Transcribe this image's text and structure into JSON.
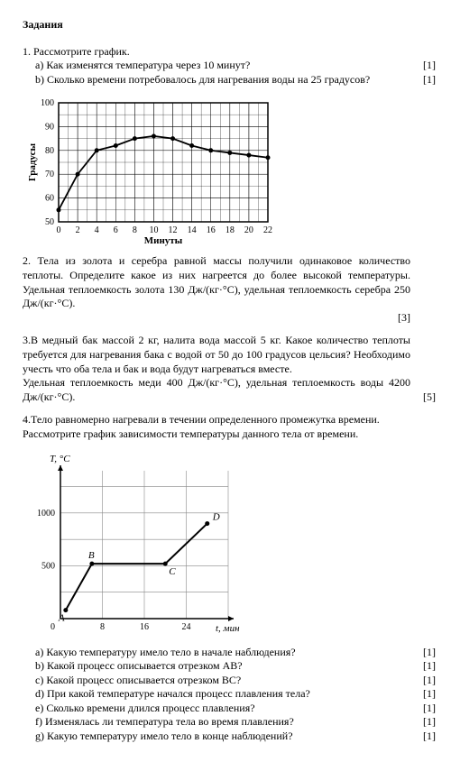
{
  "title": "Задания",
  "task1": {
    "head": "1. Рассмотрите график.",
    "a": "a) Как изменятся температура через 10 минут?",
    "a_mark": "[1]",
    "b": "b) Сколько времени потребовалось для нагревания воды на 25 градусов?",
    "b_mark": "[1]",
    "chart": {
      "xlabel": "Минуты",
      "ylabel": "Градусы",
      "xlim": [
        0,
        22
      ],
      "ylim": [
        50,
        100
      ],
      "xticks": [
        0,
        2,
        4,
        6,
        8,
        10,
        12,
        14,
        16,
        18,
        20,
        22
      ],
      "yticks": [
        50,
        60,
        70,
        80,
        90,
        100
      ],
      "points": [
        [
          0,
          55
        ],
        [
          2,
          70
        ],
        [
          4,
          80
        ],
        [
          6,
          82
        ],
        [
          8,
          85
        ],
        [
          10,
          86
        ],
        [
          12,
          85
        ],
        [
          14,
          82
        ],
        [
          16,
          80
        ],
        [
          18,
          79
        ],
        [
          20,
          78
        ],
        [
          22,
          77
        ]
      ],
      "marker_r": 2.5,
      "line_color": "#000",
      "grid_color": "#000",
      "bg": "#fff",
      "fontsize": 10
    }
  },
  "task2": {
    "text": "2. Тела из золота и серебра равной массы получили одинаковое количество теплоты. Определите какое из них нагреется до более высокой температуры. Удельная теплоемкость золота 130 Дж/(кг·°С), удельная теплоемкость серебра 250 Дж/(кг·°С).",
    "mark": "[3]"
  },
  "task3": {
    "text1": "3.В медный бак массой 2 кг, налита вода массой 5 кг. Какое количество теплоты требуется для нагревания бака с водой от 50 до 100 градусов цельсия? Необходимо учесть что оба тела и бак и вода будут нагреваться вместе.",
    "text2": "Удельная теплоемкость меди 400 Дж/(кг·°С), удельная теплоемкость воды 4200 Дж/(кг·°С).",
    "mark": "[5]"
  },
  "task4": {
    "line1": "4.Тело равномерно нагревали в течении определенного промежутка времени.",
    "line2": "Рассмотрите график зависимости температуры данного тела от времени.",
    "chart": {
      "xlabel": "t, мин",
      "ylabel": "T, °C",
      "xlim": [
        0,
        32
      ],
      "ylim": [
        0,
        1400
      ],
      "xticks": [
        8,
        16,
        24
      ],
      "yticks": [
        500,
        1000
      ],
      "points": {
        "A": [
          1,
          80
        ],
        "B": [
          6,
          520
        ],
        "C": [
          20,
          520
        ],
        "D": [
          28,
          900
        ]
      },
      "line_color": "#000",
      "grid_color": "#888",
      "bg": "#fff",
      "fontsize": 10,
      "line_width": 2
    },
    "qa": "a) Какую температуру имело тело в начале наблюдения?",
    "qb": "b) Какой процесс описывается отрезком АВ?",
    "qc": "c) Какой процесс описывается отрезком ВС?",
    "qd": "d) При какой температуре начался процесс плавления тела?",
    "qe": "e) Сколько времени длился процесс плавления?",
    "qf": "f) Изменялась ли температура тела во время плавления?",
    "qg": "g) Какую температуру имело тело в конце наблюдений?",
    "m": "[1]"
  }
}
